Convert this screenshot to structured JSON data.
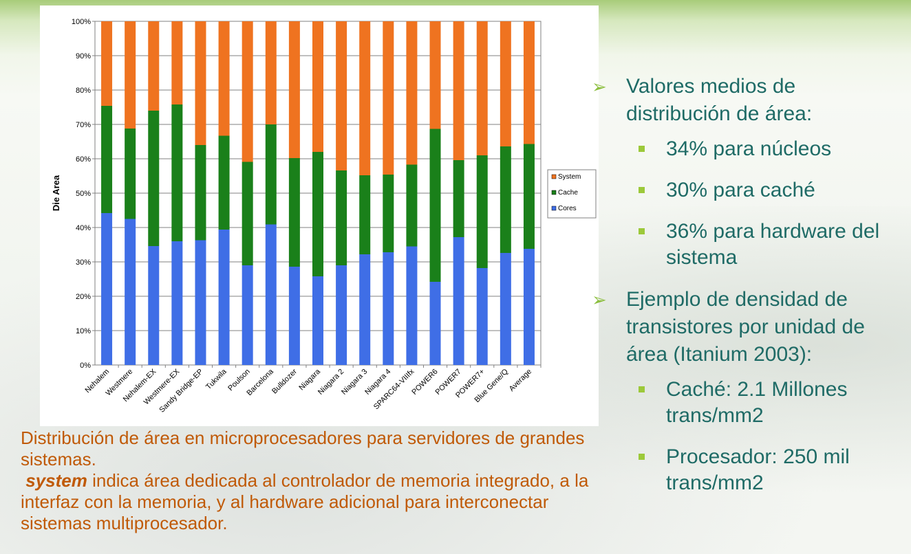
{
  "chart_data": {
    "type": "bar",
    "stacked": true,
    "orientation": "vertical",
    "ylabel": "Die Area",
    "xlabel": "",
    "ylim": [
      0,
      100
    ],
    "yticks": [
      "0%",
      "10%",
      "20%",
      "30%",
      "40%",
      "50%",
      "60%",
      "70%",
      "80%",
      "90%",
      "100%"
    ],
    "grid": true,
    "legend": "right",
    "categories": [
      "Nehalem",
      "Westmere",
      "Nehalem-EX",
      "Westmere-EX",
      "Sandy Bridge-EP",
      "Tukwila",
      "Poulson",
      "Barcelona",
      "Bulldozer",
      "Niagara",
      "Niagara 2",
      "Niagara 3",
      "Niagara 4",
      "SPARC64-VIIIfx",
      "POWER6",
      "POWER7",
      "POWER7+",
      "Blue Gene/Q",
      "Average"
    ],
    "series": [
      {
        "name": "Cores",
        "color": "#3f6ee6",
        "values": [
          44.2,
          42.5,
          34.6,
          36.0,
          36.3,
          39.4,
          29.0,
          40.9,
          28.6,
          25.8,
          29.0,
          32.2,
          32.8,
          34.5,
          24.2,
          37.2,
          28.2,
          32.6,
          33.8
        ]
      },
      {
        "name": "Cache",
        "color": "#1a801a",
        "values": [
          31.2,
          26.3,
          39.4,
          39.8,
          27.7,
          27.3,
          30.1,
          29.1,
          31.6,
          36.2,
          27.6,
          23.0,
          22.6,
          23.8,
          44.5,
          22.4,
          32.8,
          31.0,
          30.5
        ]
      },
      {
        "name": "System",
        "color": "#ef7320",
        "values": [
          24.6,
          31.2,
          26.0,
          24.2,
          36.0,
          33.3,
          40.9,
          30.0,
          39.8,
          38.0,
          43.4,
          44.8,
          44.6,
          41.7,
          31.3,
          40.4,
          39.0,
          36.4,
          35.7
        ]
      }
    ]
  },
  "caption": {
    "line1": "Distribución de área en microprocesadores para servidores de grandes sistemas.",
    "keyword": "system",
    "line2": " indica área dedicada al controlador de memoria integrado, a la interfaz con la memoria, y al hardware adicional para interconectar sistemas multiprocesador."
  },
  "bullets": {
    "b1": "Valores medios de distribución de área:",
    "b1_sub": [
      "34% para núcleos",
      "30% para caché",
      "36% para hardware del sistema"
    ],
    "b2": "Ejemplo de densidad de transistores por unidad de área (Itanium 2003):",
    "b2_sub": [
      "Caché: 2.1 Millones trans/mm2",
      "Procesador: 250 mil trans/mm2"
    ]
  },
  "colors": {
    "caption": "#c05a08",
    "bullet_text": "#1f6b66",
    "arrow": "#8cbf3f",
    "square": "#9cc93a"
  }
}
